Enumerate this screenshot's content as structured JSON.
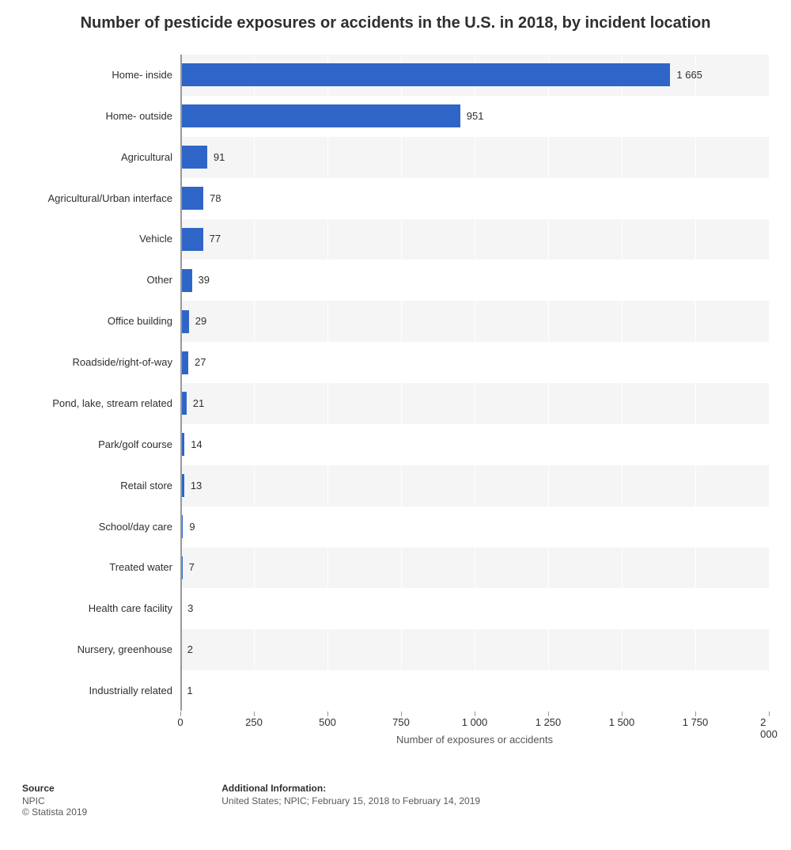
{
  "title": "Number of pesticide exposures or accidents in the U.S. in 2018, by incident location",
  "chart": {
    "type": "bar-horizontal",
    "x_label": "Number of exposures or accidents",
    "x_min": 0,
    "x_max": 2000,
    "x_tick_step": 250,
    "x_ticks": [
      "0",
      "250",
      "500",
      "750",
      "1 000",
      "1 250",
      "1 500",
      "1 750",
      "2 000"
    ],
    "categories": [
      "Home- inside",
      "Home- outside",
      "Agricultural",
      "Agricultural/Urban interface",
      "Vehicle",
      "Other",
      "Office building",
      "Roadside/right-of-way",
      "Pond, lake, stream related",
      "Park/golf course",
      "Retail store",
      "School/day care",
      "Treated water",
      "Health care facility",
      "Nursery, greenhouse",
      "Industrially related"
    ],
    "values": [
      1665,
      951,
      91,
      78,
      77,
      39,
      29,
      27,
      21,
      14,
      13,
      9,
      7,
      3,
      2,
      1
    ],
    "value_labels": [
      "1 665",
      "951",
      "91",
      "78",
      "77",
      "39",
      "29",
      "27",
      "21",
      "14",
      "13",
      "9",
      "7",
      "3",
      "2",
      "1"
    ],
    "bar_color": "#3065c8",
    "row_alt_color": "#f5f5f5",
    "row_base_color": "#ffffff",
    "grid_color": "#ffffff",
    "axis_color": "#999999",
    "label_fontsize": 13
  },
  "footer": {
    "source_heading": "Source",
    "source_line1": "NPIC",
    "source_line2": "© Statista 2019",
    "info_heading": "Additional Information:",
    "info_line": "United States; NPIC; February 15, 2018 to February 14, 2019"
  }
}
